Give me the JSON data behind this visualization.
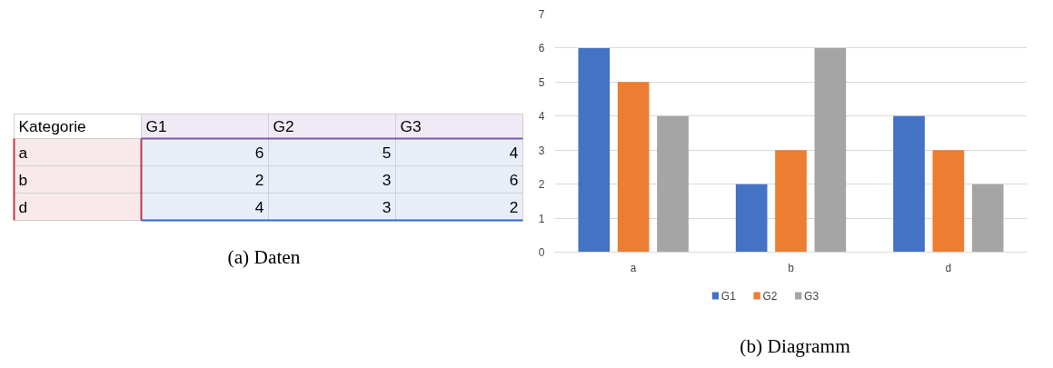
{
  "chart_data": [
    {
      "type": "other",
      "annotations": [
        "Kategorie",
        "G1",
        "G2",
        "G3",
        "a",
        "6",
        "5",
        "4",
        "b",
        "2",
        "3",
        "6",
        "d",
        "4",
        "3",
        "2",
        "(a) Daten"
      ]
    },
    {
      "type": "bar",
      "categories": [
        "a",
        "b",
        "d"
      ],
      "series": [
        {
          "name": "G1",
          "color": "#4472c4",
          "values": [
            6,
            2,
            4
          ]
        },
        {
          "name": "G2",
          "color": "#ed7d31",
          "values": [
            5,
            3,
            3
          ]
        },
        {
          "name": "G3",
          "color": "#a5a5a5",
          "values": [
            4,
            6,
            2
          ]
        }
      ],
      "ylim": [
        0,
        7
      ],
      "yticks": [
        0,
        1,
        2,
        3,
        4,
        5,
        6,
        7
      ],
      "grid": "y",
      "legend": "bottom",
      "annotations": [
        "(b) Diagramm"
      ]
    }
  ]
}
